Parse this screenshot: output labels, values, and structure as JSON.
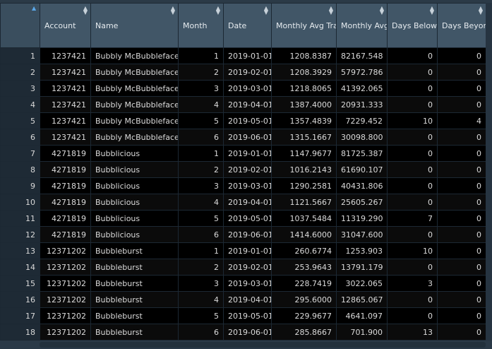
{
  "columns": [
    {
      "key": "rownum",
      "label": ""
    },
    {
      "key": "account",
      "label": "Account"
    },
    {
      "key": "name",
      "label": "Name"
    },
    {
      "key": "month",
      "label": "Month"
    },
    {
      "key": "date",
      "label": "Date"
    },
    {
      "key": "avg_txn",
      "label": "Monthly Avg Transaction"
    },
    {
      "key": "avg_bal",
      "label": "Monthly Avg Balance"
    },
    {
      "key": "below_zero",
      "label": "Days Below Zero balance"
    },
    {
      "key": "beyond_credit",
      "label": "Days Beyond Max Credit"
    }
  ],
  "rows": [
    {
      "rownum": "1",
      "account": "1237421",
      "name": "Bubbly McBubbleface",
      "month": "1",
      "date": "2019-01-01",
      "avg_txn": "1208.8387",
      "avg_bal": "82167.548",
      "below_zero": "0",
      "beyond_credit": "0"
    },
    {
      "rownum": "2",
      "account": "1237421",
      "name": "Bubbly McBubbleface",
      "month": "2",
      "date": "2019-02-01",
      "avg_txn": "1208.3929",
      "avg_bal": "57972.786",
      "below_zero": "0",
      "beyond_credit": "0"
    },
    {
      "rownum": "3",
      "account": "1237421",
      "name": "Bubbly McBubbleface",
      "month": "3",
      "date": "2019-03-01",
      "avg_txn": "1218.8065",
      "avg_bal": "41392.065",
      "below_zero": "0",
      "beyond_credit": "0"
    },
    {
      "rownum": "4",
      "account": "1237421",
      "name": "Bubbly McBubbleface",
      "month": "4",
      "date": "2019-04-01",
      "avg_txn": "1387.4000",
      "avg_bal": "20931.333",
      "below_zero": "0",
      "beyond_credit": "0"
    },
    {
      "rownum": "5",
      "account": "1237421",
      "name": "Bubbly McBubbleface",
      "month": "5",
      "date": "2019-05-01",
      "avg_txn": "1357.4839",
      "avg_bal": "7229.452",
      "below_zero": "10",
      "beyond_credit": "4"
    },
    {
      "rownum": "6",
      "account": "1237421",
      "name": "Bubbly McBubbleface",
      "month": "6",
      "date": "2019-06-01",
      "avg_txn": "1315.1667",
      "avg_bal": "30098.800",
      "below_zero": "0",
      "beyond_credit": "0"
    },
    {
      "rownum": "7",
      "account": "4271819",
      "name": "Bubblicious",
      "month": "1",
      "date": "2019-01-01",
      "avg_txn": "1147.9677",
      "avg_bal": "81725.387",
      "below_zero": "0",
      "beyond_credit": "0"
    },
    {
      "rownum": "8",
      "account": "4271819",
      "name": "Bubblicious",
      "month": "2",
      "date": "2019-02-01",
      "avg_txn": "1016.2143",
      "avg_bal": "61690.107",
      "below_zero": "0",
      "beyond_credit": "0"
    },
    {
      "rownum": "9",
      "account": "4271819",
      "name": "Bubblicious",
      "month": "3",
      "date": "2019-03-01",
      "avg_txn": "1290.2581",
      "avg_bal": "40431.806",
      "below_zero": "0",
      "beyond_credit": "0"
    },
    {
      "rownum": "10",
      "account": "4271819",
      "name": "Bubblicious",
      "month": "4",
      "date": "2019-04-01",
      "avg_txn": "1121.5667",
      "avg_bal": "25605.267",
      "below_zero": "0",
      "beyond_credit": "0"
    },
    {
      "rownum": "11",
      "account": "4271819",
      "name": "Bubblicious",
      "month": "5",
      "date": "2019-05-01",
      "avg_txn": "1037.5484",
      "avg_bal": "11319.290",
      "below_zero": "7",
      "beyond_credit": "0"
    },
    {
      "rownum": "12",
      "account": "4271819",
      "name": "Bubblicious",
      "month": "6",
      "date": "2019-06-01",
      "avg_txn": "1414.6000",
      "avg_bal": "31047.600",
      "below_zero": "0",
      "beyond_credit": "0"
    },
    {
      "rownum": "13",
      "account": "12371202",
      "name": "Bubbleburst",
      "month": "1",
      "date": "2019-01-01",
      "avg_txn": "260.6774",
      "avg_bal": "1253.903",
      "below_zero": "10",
      "beyond_credit": "0"
    },
    {
      "rownum": "14",
      "account": "12371202",
      "name": "Bubbleburst",
      "month": "2",
      "date": "2019-02-01",
      "avg_txn": "253.9643",
      "avg_bal": "13791.179",
      "below_zero": "0",
      "beyond_credit": "0"
    },
    {
      "rownum": "15",
      "account": "12371202",
      "name": "Bubbleburst",
      "month": "3",
      "date": "2019-03-01",
      "avg_txn": "228.7419",
      "avg_bal": "3022.065",
      "below_zero": "3",
      "beyond_credit": "0"
    },
    {
      "rownum": "16",
      "account": "12371202",
      "name": "Bubbleburst",
      "month": "4",
      "date": "2019-04-01",
      "avg_txn": "295.6000",
      "avg_bal": "12865.067",
      "below_zero": "0",
      "beyond_credit": "0"
    },
    {
      "rownum": "17",
      "account": "12371202",
      "name": "Bubbleburst",
      "month": "5",
      "date": "2019-05-01",
      "avg_txn": "229.9677",
      "avg_bal": "4641.097",
      "below_zero": "0",
      "beyond_credit": "0"
    },
    {
      "rownum": "18",
      "account": "12371202",
      "name": "Bubbleburst",
      "month": "6",
      "date": "2019-06-01",
      "avg_txn": "285.8667",
      "avg_bal": "701.900",
      "below_zero": "13",
      "beyond_credit": "0"
    }
  ],
  "icons": {
    "sort": "sort-arrows-icon",
    "sort_active": "sort-up-icon"
  },
  "colors": {
    "header_bg": "#415667",
    "row_bg": "#000000",
    "rownum_bg": "#1e2a35",
    "accent": "#5aa7e8"
  }
}
